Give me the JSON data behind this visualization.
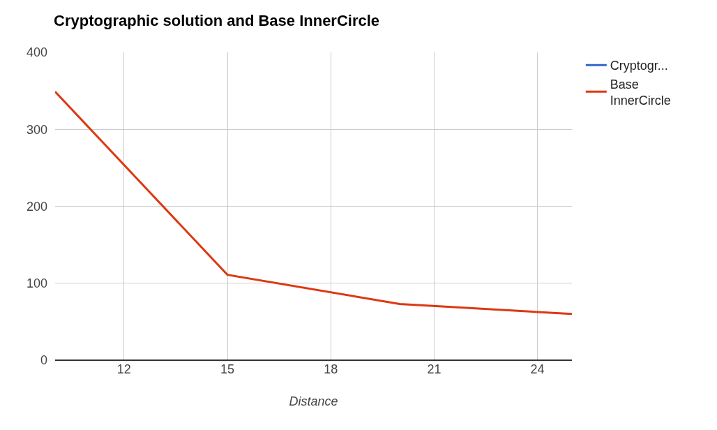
{
  "chart_data": {
    "type": "line",
    "title": "Cryptographic solution and Base InnerCircle",
    "xlabel": "Distance",
    "x": [
      10,
      15,
      20,
      25
    ],
    "series": [
      {
        "name": "Cryptogr...",
        "color": "#3366cc",
        "values": [
          null,
          null,
          null,
          null
        ]
      },
      {
        "name": "Base InnerCircle",
        "color": "#dc3912",
        "values": [
          349,
          111,
          73,
          60
        ]
      }
    ],
    "xlim": [
      10,
      25
    ],
    "xticks": [
      12,
      15,
      18,
      21,
      24
    ],
    "ylim": [
      0,
      400
    ],
    "yticks": [
      0,
      100,
      200,
      300,
      400
    ],
    "grid": true,
    "legend": "top right",
    "marker": "none",
    "line_style": "solid"
  }
}
